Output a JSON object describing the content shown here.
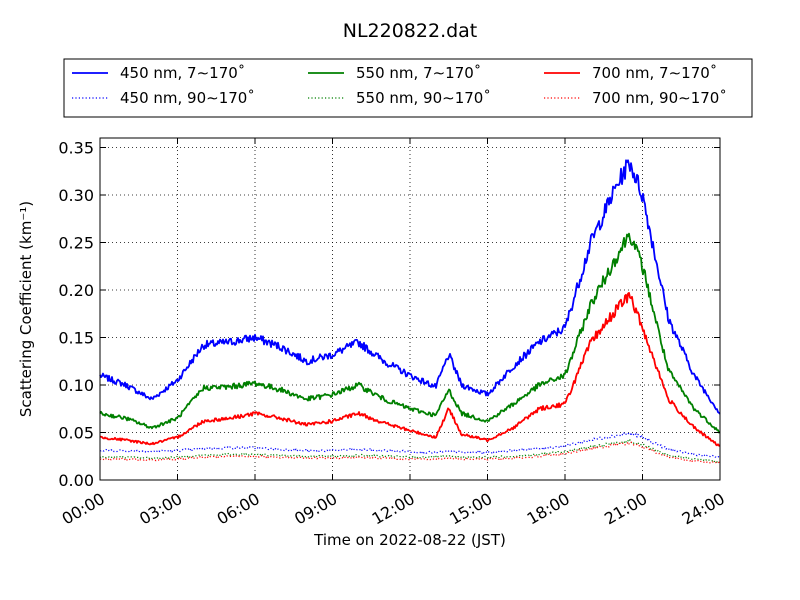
{
  "chart_data": {
    "type": "line",
    "title": "NL220822.dat",
    "xlabel": "Time on 2022-08-22 (JST)",
    "ylabel": "Scattering Coefficient (km⁻¹)",
    "xlim": [
      "00:00",
      "24:00"
    ],
    "ylim": [
      0,
      0.36
    ],
    "x_ticks": [
      "00:00",
      "03:00",
      "06:00",
      "09:00",
      "12:00",
      "15:00",
      "18:00",
      "21:00",
      "24:00"
    ],
    "y_ticks": [
      "0.00",
      "0.05",
      "0.10",
      "0.15",
      "0.20",
      "0.25",
      "0.30",
      "0.35"
    ],
    "grid": true,
    "legend_position": "top",
    "x": [
      "00:00",
      "01:00",
      "02:00",
      "03:00",
      "04:00",
      "05:00",
      "06:00",
      "07:00",
      "08:00",
      "09:00",
      "10:00",
      "11:00",
      "12:00",
      "13:00",
      "13:30",
      "14:00",
      "15:00",
      "16:00",
      "17:00",
      "18:00",
      "19:00",
      "20:00",
      "20:30",
      "21:00",
      "22:00",
      "23:00",
      "24:00"
    ],
    "series": [
      {
        "name": "450 nm, 7∼170˚",
        "style": "solid",
        "color": "#0000ff",
        "values": [
          0.11,
          0.1,
          0.085,
          0.105,
          0.142,
          0.145,
          0.15,
          0.14,
          0.125,
          0.132,
          0.145,
          0.125,
          0.11,
          0.098,
          0.132,
          0.1,
          0.09,
          0.12,
          0.145,
          0.16,
          0.25,
          0.31,
          0.335,
          0.3,
          0.17,
          0.11,
          0.07
        ]
      },
      {
        "name": "450 nm, 90∼170˚",
        "style": "dotted",
        "color": "#0000ff",
        "values": [
          0.031,
          0.031,
          0.03,
          0.031,
          0.033,
          0.034,
          0.034,
          0.032,
          0.031,
          0.031,
          0.032,
          0.031,
          0.03,
          0.029,
          0.03,
          0.029,
          0.029,
          0.031,
          0.033,
          0.036,
          0.042,
          0.047,
          0.049,
          0.045,
          0.032,
          0.027,
          0.024
        ]
      },
      {
        "name": "550 nm, 7∼170˚",
        "style": "solid",
        "color": "#008000",
        "values": [
          0.07,
          0.065,
          0.055,
          0.065,
          0.097,
          0.098,
          0.102,
          0.095,
          0.085,
          0.09,
          0.1,
          0.085,
          0.075,
          0.068,
          0.095,
          0.07,
          0.062,
          0.08,
          0.1,
          0.11,
          0.185,
          0.235,
          0.26,
          0.225,
          0.115,
          0.075,
          0.05
        ]
      },
      {
        "name": "550 nm, 90∼170˚",
        "style": "dotted",
        "color": "#008000",
        "values": [
          0.024,
          0.024,
          0.023,
          0.024,
          0.026,
          0.027,
          0.027,
          0.026,
          0.025,
          0.025,
          0.026,
          0.025,
          0.024,
          0.024,
          0.025,
          0.024,
          0.024,
          0.025,
          0.027,
          0.03,
          0.035,
          0.039,
          0.041,
          0.037,
          0.026,
          0.022,
          0.019
        ]
      },
      {
        "name": "700 nm, 7∼170˚",
        "style": "solid",
        "color": "#ff0000",
        "values": [
          0.045,
          0.042,
          0.038,
          0.045,
          0.062,
          0.065,
          0.07,
          0.065,
          0.058,
          0.062,
          0.07,
          0.06,
          0.052,
          0.045,
          0.075,
          0.048,
          0.042,
          0.055,
          0.075,
          0.08,
          0.145,
          0.18,
          0.195,
          0.16,
          0.085,
          0.055,
          0.035
        ]
      },
      {
        "name": "700 nm, 90∼170˚",
        "style": "dotted",
        "color": "#ff0000",
        "values": [
          0.022,
          0.022,
          0.021,
          0.022,
          0.024,
          0.025,
          0.025,
          0.024,
          0.023,
          0.023,
          0.024,
          0.023,
          0.022,
          0.022,
          0.023,
          0.022,
          0.022,
          0.023,
          0.025,
          0.028,
          0.033,
          0.037,
          0.039,
          0.035,
          0.024,
          0.02,
          0.018
        ]
      }
    ]
  }
}
